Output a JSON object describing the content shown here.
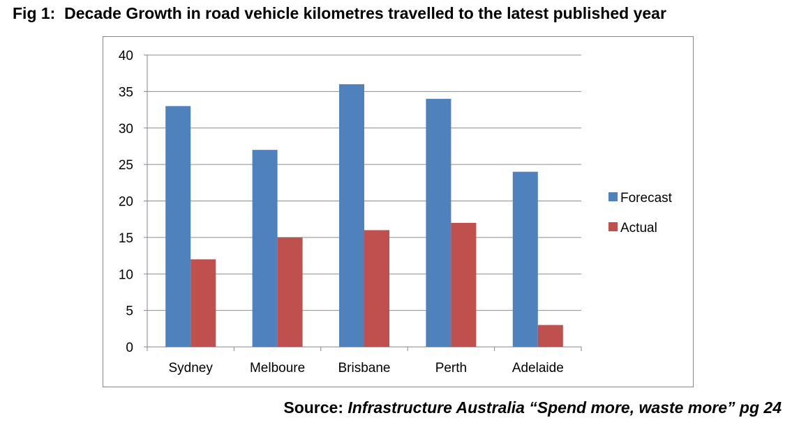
{
  "figure": {
    "label": "Fig 1:",
    "title": "Decade Growth in road vehicle kilometres travelled to the latest published year"
  },
  "source": {
    "prefix": "Source:",
    "citation": "Infrastructure Australia “Spend more, waste more” pg 24"
  },
  "chart_data": {
    "type": "bar",
    "categories": [
      "Sydney",
      "Melboure",
      "Brisbane",
      "Perth",
      "Adelaide"
    ],
    "series": [
      {
        "name": "Forecast",
        "values": [
          33,
          27,
          36,
          34,
          24
        ],
        "color": "#4f81bd"
      },
      {
        "name": "Actual",
        "values": [
          12,
          15,
          16,
          17,
          3
        ],
        "color": "#c0504d"
      }
    ],
    "ylim": [
      0,
      40
    ],
    "yticks": [
      0,
      5,
      10,
      15,
      20,
      25,
      30,
      35,
      40
    ],
    "grid": true,
    "legend_position": "right"
  }
}
